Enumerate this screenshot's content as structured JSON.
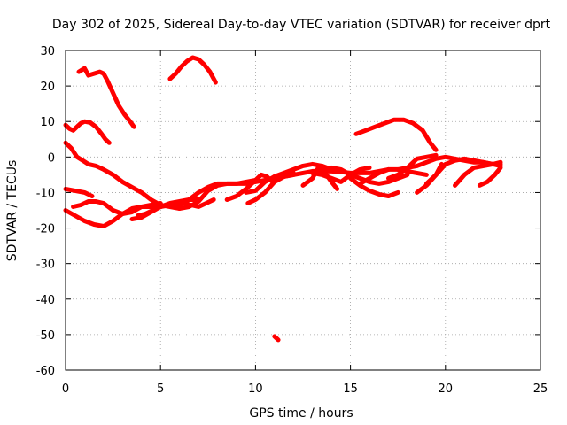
{
  "chart_data": {
    "type": "line",
    "title": "Day 302 of 2025, Sidereal Day-to-day VTEC variation (SDTVAR) for receiver dprt",
    "xlabel": "GPS time / hours",
    "ylabel": "SDTVAR / TECUs",
    "xlim": [
      0,
      25
    ],
    "ylim": [
      -60,
      30
    ],
    "xticks": [
      0,
      5,
      10,
      15,
      20,
      25
    ],
    "yticks": [
      -60,
      -50,
      -40,
      -30,
      -20,
      -10,
      0,
      10,
      20,
      30
    ],
    "grid": true,
    "color": "#ff0000",
    "series": [
      {
        "name": "s1",
        "x": [
          0.7,
          1.0,
          1.2,
          1.5,
          1.8,
          2.0,
          2.2,
          2.5,
          2.8,
          3.1,
          3.4,
          3.6
        ],
        "y": [
          24,
          25,
          23,
          23.5,
          24,
          23.5,
          21.5,
          18,
          14.5,
          12,
          10,
          8.5
        ]
      },
      {
        "name": "s2",
        "x": [
          0.0,
          0.2,
          0.4,
          0.6,
          0.8,
          1.0,
          1.3,
          1.6,
          1.9,
          2.1,
          2.3
        ],
        "y": [
          9,
          8,
          7.5,
          8.5,
          9.5,
          10,
          9.7,
          8.5,
          6.5,
          5,
          4
        ]
      },
      {
        "name": "s3",
        "x": [
          5.5,
          5.8,
          6.1,
          6.4,
          6.7,
          7.0,
          7.3,
          7.6,
          7.9
        ],
        "y": [
          22,
          23.5,
          25.5,
          27,
          28,
          27.5,
          26,
          24,
          21
        ]
      },
      {
        "name": "s4",
        "x": [
          0.0,
          0.3,
          0.6,
          0.9,
          1.2,
          1.6,
          2.0,
          2.5,
          3.0,
          3.5,
          4.0,
          4.5,
          5.0,
          5.5,
          6.0
        ],
        "y": [
          4,
          2.5,
          0,
          -1,
          -2,
          -2.5,
          -3.5,
          -5,
          -7,
          -8.5,
          -10,
          -12,
          -13.5,
          -14,
          -14.5
        ]
      },
      {
        "name": "s5",
        "x": [
          0.0,
          0.5,
          1.0,
          1.5,
          2.0,
          2.5,
          3.0,
          3.5,
          4.0,
          4.5,
          5.0,
          5.5,
          6.0,
          6.5,
          7.0,
          7.5,
          8.0,
          8.5,
          9.0,
          9.5,
          10.0
        ],
        "y": [
          -15,
          -16.5,
          -18,
          -19,
          -19.5,
          -18,
          -16,
          -14.5,
          -14,
          -14,
          -14,
          -13.5,
          -13.5,
          -12,
          -10,
          -8.5,
          -7.5,
          -7.5,
          -7.5,
          -7,
          -6.5
        ]
      },
      {
        "name": "s6",
        "x": [
          0.0,
          0.5,
          1.0,
          1.4
        ],
        "y": [
          -9,
          -9.5,
          -10,
          -11
        ]
      },
      {
        "name": "s7",
        "x": [
          0.4,
          0.8,
          1.2,
          1.6,
          2.0,
          2.5,
          3.0,
          3.5,
          4.0,
          4.5,
          5.0
        ],
        "y": [
          -14,
          -13.5,
          -12.5,
          -12.5,
          -13,
          -15,
          -16,
          -15.5,
          -14,
          -13.5,
          -13
        ]
      },
      {
        "name": "s8",
        "x": [
          3.5,
          4.0,
          4.5,
          5.0,
          5.5,
          6.0,
          6.5,
          7.0
        ],
        "y": [
          -17.5,
          -17,
          -15.5,
          -14,
          -13,
          -12.5,
          -12,
          -12
        ]
      },
      {
        "name": "s9",
        "x": [
          3.8,
          4.2,
          4.6,
          5.0,
          5.4,
          5.8,
          6.2,
          6.6,
          7.0,
          7.4,
          7.8
        ],
        "y": [
          -16.5,
          -16,
          -15,
          -14,
          -13.5,
          -13,
          -13,
          -13.5,
          -14,
          -13,
          -12
        ]
      },
      {
        "name": "s10",
        "x": [
          6.0,
          6.5,
          7.0,
          7.5,
          8.0,
          8.5,
          9.0,
          9.5,
          10.0,
          10.5,
          11.0,
          11.5,
          12.0
        ],
        "y": [
          -14.5,
          -14,
          -12.5,
          -9.5,
          -8,
          -7.5,
          -7.5,
          -7.5,
          -7,
          -6.5,
          -6,
          -5.5,
          -5
        ]
      },
      {
        "name": "s11",
        "x": [
          8.5,
          9.0,
          9.5,
          10.0,
          10.3,
          10.6,
          10.9
        ],
        "y": [
          -12,
          -11,
          -9,
          -6.5,
          -5,
          -5.5,
          -7
        ]
      },
      {
        "name": "s12",
        "x": [
          9.5,
          10.0,
          10.5,
          11.0,
          11.5
        ],
        "y": [
          -10,
          -9.5,
          -7,
          -5.5,
          -5
        ]
      },
      {
        "name": "s13",
        "x": [
          9.6,
          10.0,
          10.5,
          11.0,
          11.5,
          12.0
        ],
        "y": [
          -13,
          -12,
          -10,
          -7,
          -5.5,
          -4.5
        ]
      },
      {
        "name": "s14",
        "x": [
          11.0,
          11.5,
          12.0,
          12.5,
          13.0,
          13.5,
          14.0,
          14.5,
          15.0,
          15.5,
          16.0,
          16.5,
          17.0
        ],
        "y": [
          -6,
          -5.5,
          -5,
          -4.5,
          -4,
          -4,
          -4,
          -4.2,
          -4.5,
          -4.5,
          -4.5,
          -4,
          -3.5
        ]
      },
      {
        "name": "s15",
        "x": [
          11.0,
          11.5,
          12.0,
          12.5,
          13.0,
          13.5,
          14.0
        ],
        "y": [
          -5.5,
          -4.5,
          -3.5,
          -2.5,
          -2,
          -2.5,
          -3.5
        ]
      },
      {
        "name": "s16",
        "x": [
          12.5,
          13.0,
          13.3,
          13.6,
          14.0,
          14.3
        ],
        "y": [
          -8,
          -6,
          -3,
          -4,
          -7,
          -9
        ]
      },
      {
        "name": "s17",
        "x": [
          13.0,
          13.5,
          14.0,
          14.5,
          15.0,
          15.5,
          16.0
        ],
        "y": [
          -4.5,
          -5,
          -6,
          -7,
          -5,
          -3.5,
          -3
        ]
      },
      {
        "name": "s18",
        "x": [
          14.0,
          14.5,
          15.0,
          15.5,
          16.0,
          16.5,
          17.0,
          17.5,
          18.0
        ],
        "y": [
          -3,
          -3.5,
          -5,
          -6,
          -7,
          -7.5,
          -7,
          -6,
          -5
        ]
      },
      {
        "name": "s19",
        "x": [
          15.0,
          15.5,
          16.0,
          16.5,
          17.0,
          17.5
        ],
        "y": [
          -6,
          -8,
          -9.5,
          -10.5,
          -11,
          -10
        ]
      },
      {
        "name": "s20",
        "x": [
          15.5,
          16.0,
          16.5,
          17.0,
          17.5,
          18.0,
          18.5,
          19.0
        ],
        "y": [
          -7.5,
          -6,
          -4.5,
          -3.5,
          -3.5,
          -4,
          -4.5,
          -5
        ]
      },
      {
        "name": "s21",
        "x": [
          15.3,
          15.8,
          16.3,
          16.8,
          17.3,
          17.8,
          18.3,
          18.8,
          19.2,
          19.5
        ],
        "y": [
          6.5,
          7.5,
          8.5,
          9.5,
          10.5,
          10.5,
          9.5,
          7.5,
          4,
          2
        ]
      },
      {
        "name": "s22",
        "x": [
          17.5,
          18.0,
          18.5,
          19.0,
          19.5,
          20.0,
          20.5,
          21.0,
          21.5,
          22.0,
          22.5,
          22.9
        ],
        "y": [
          -3.5,
          -3,
          -2.5,
          -1.5,
          -0.5,
          0,
          -0.5,
          -1,
          -1.5,
          -1.5,
          -2,
          -2.5
        ]
      },
      {
        "name": "s23",
        "x": [
          17.0,
          17.5,
          18.0,
          18.5,
          19.0,
          19.5
        ],
        "y": [
          -6,
          -5,
          -3,
          -0.5,
          0,
          0.5
        ]
      },
      {
        "name": "s24",
        "x": [
          18.5,
          19.0,
          19.5,
          19.8
        ],
        "y": [
          -10,
          -8,
          -5,
          -2
        ]
      },
      {
        "name": "s25",
        "x": [
          19.0,
          19.5,
          20.0,
          20.5,
          21.0,
          21.5,
          22.0,
          22.5,
          22.9
        ],
        "y": [
          -7.5,
          -5,
          -2,
          -1,
          -0.5,
          -1,
          -1.5,
          -2,
          -2
        ]
      },
      {
        "name": "s26",
        "x": [
          20.5,
          21.0,
          21.5,
          22.0,
          22.5,
          22.9
        ],
        "y": [
          -8,
          -5,
          -3,
          -2.5,
          -2,
          -1.5
        ]
      },
      {
        "name": "s27",
        "x": [
          21.8,
          22.2,
          22.6,
          22.9
        ],
        "y": [
          -8,
          -7,
          -5,
          -3
        ]
      },
      {
        "name": "s28",
        "x": [
          11.0,
          11.2
        ],
        "y": [
          -50.5,
          -51.5
        ]
      }
    ]
  }
}
